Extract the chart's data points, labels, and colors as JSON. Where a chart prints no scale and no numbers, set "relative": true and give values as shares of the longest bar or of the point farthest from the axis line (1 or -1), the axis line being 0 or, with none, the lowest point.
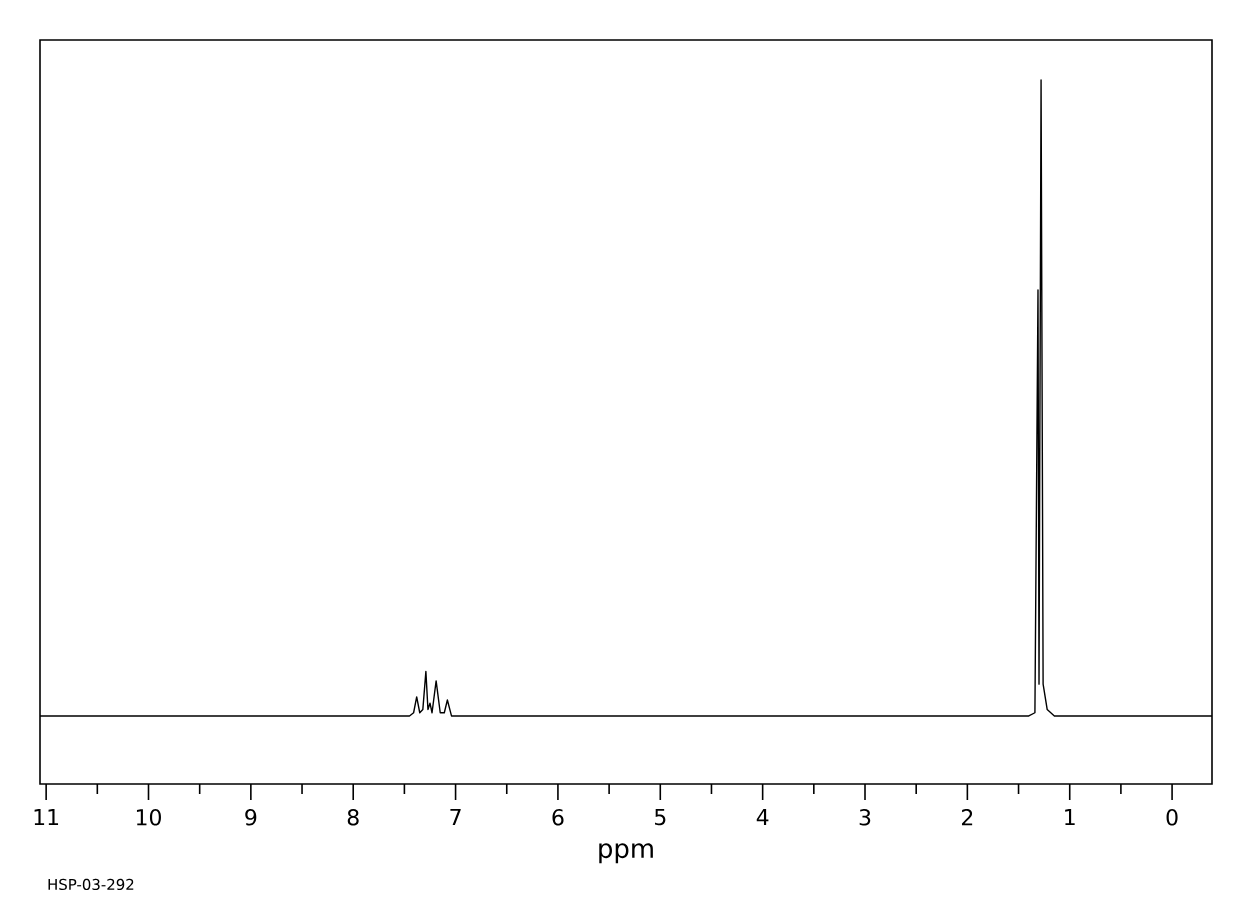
{
  "chart_data": {
    "type": "line",
    "relative": true,
    "xlabel": "ppm",
    "annotations": [
      "HSP-03-292"
    ],
    "xlim": [
      11.06,
      -0.39
    ],
    "xticks": [
      11,
      10,
      9,
      8,
      7,
      6,
      5,
      4,
      3,
      2,
      1,
      0
    ],
    "x": [
      11.06,
      7.45,
      7.41,
      7.38,
      7.35,
      7.32,
      7.29,
      7.27,
      7.25,
      7.23,
      7.19,
      7.15,
      7.11,
      7.08,
      7.04,
      1.4,
      1.34,
      1.31,
      1.3,
      1.28,
      1.26,
      1.22,
      1.15,
      -0.39
    ],
    "series": [
      {
        "color": "#000000",
        "values": [
          0,
          0,
          0.005,
          0.03,
          0.005,
          0.01,
          0.07,
          0.01,
          0.02,
          0.005,
          0.055,
          0.005,
          0.005,
          0.025,
          0,
          0,
          0.005,
          0.67,
          0.05,
          1.0,
          0.05,
          0.01,
          0,
          0
        ]
      }
    ],
    "marker": "none",
    "line_style": "solid",
    "grid": false
  }
}
